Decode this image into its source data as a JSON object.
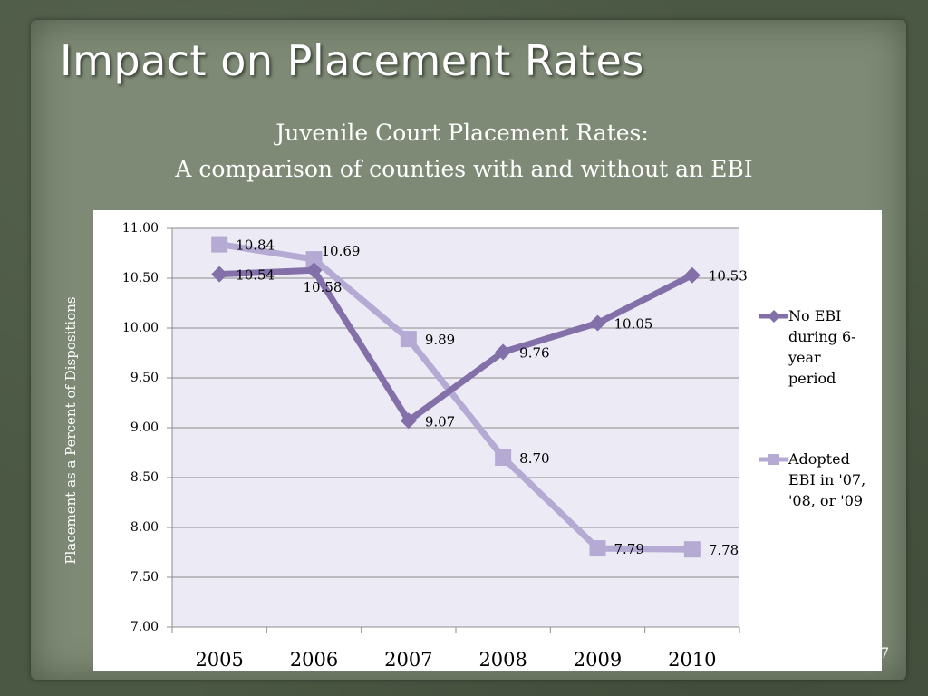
{
  "slide": {
    "title": "Impact on Placement Rates",
    "page_number": "7"
  },
  "colors": {
    "no_ebi": "#8470a8",
    "adopted_ebi": "#b5aad3",
    "plot_bg": "#eceaf4",
    "grid": "#8c8c8c"
  },
  "chart_data": {
    "type": "line",
    "title": "Juvenile Court Placement Rates:",
    "subtitle": "A comparison of counties with and without an EBI",
    "ylabel": "Placement as a Percent of Dispositions",
    "xlabel": "",
    "x": [
      "2005",
      "2006",
      "2007",
      "2008",
      "2009",
      "2010"
    ],
    "ylim": [
      7.0,
      11.0
    ],
    "yticks": [
      "7.00",
      "7.50",
      "8.00",
      "8.50",
      "9.00",
      "9.50",
      "10.00",
      "10.50",
      "11.00"
    ],
    "grid": true,
    "legend_position": "right",
    "series": [
      {
        "name": "No EBI during 6-year period",
        "legend_lines": [
          "No EBI",
          "during 6-",
          "year",
          "period"
        ],
        "marker": "diamond",
        "values": [
          10.54,
          10.58,
          9.07,
          9.76,
          10.05,
          10.53
        ],
        "labels": [
          "10.54",
          "10.58",
          "9.07",
          "9.76",
          "10.05",
          "10.53"
        ]
      },
      {
        "name": "Adopted EBI in '07, '08, or '09",
        "legend_lines": [
          "Adopted",
          "EBI in '07,",
          "'08, or '09"
        ],
        "marker": "square",
        "values": [
          10.84,
          10.69,
          9.89,
          8.7,
          7.79,
          7.78
        ],
        "labels": [
          "10.84",
          "10.69",
          "9.89",
          "8.70",
          "7.79",
          "7.78"
        ]
      }
    ]
  }
}
